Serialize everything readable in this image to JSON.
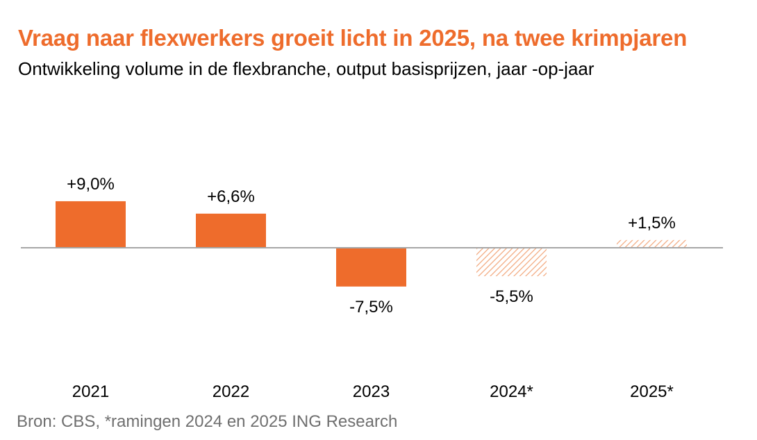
{
  "chart_data": {
    "type": "bar",
    "title": "Vraag naar flexwerkers groeit licht in 2025, na twee krimpjaren",
    "subtitle": "Ontwikkeling volume in de flexbranche, output basisprijzen, jaar -op-jaar",
    "categories": [
      "2021",
      "2022",
      "2023",
      "2024*",
      "2025*"
    ],
    "values": [
      9.0,
      6.6,
      -7.5,
      -5.5,
      1.5
    ],
    "value_labels": [
      "+9,0%",
      "+6,6%",
      "-7,5%",
      "-5,5%",
      "+1,5%"
    ],
    "estimate_flags": [
      false,
      false,
      false,
      true,
      true
    ],
    "ylim": [
      -10,
      10
    ],
    "grid": false,
    "legend": "none",
    "colors": {
      "bar": "#ee6c2c",
      "hatch": "#f2a67a",
      "zero_line": "#a6a6a6",
      "title": "#ee6c2c",
      "source": "#6f6f6f"
    },
    "source": "Bron: CBS, *ramingen 2024 en 2025 ING Research"
  }
}
